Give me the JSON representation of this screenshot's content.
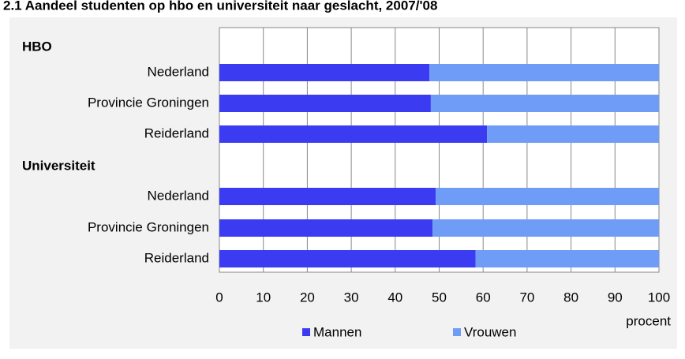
{
  "chart_data": {
    "type": "stacked_bar_horizontal",
    "title": "2.1 Aandeel studenten op hbo en universiteit naar geslacht, 2007/'08",
    "groups": [
      {
        "name": "HBO",
        "categories": [
          "Nederland",
          "Provincie Groningen",
          "Reiderland"
        ]
      },
      {
        "name": "Universiteit",
        "categories": [
          "Nederland",
          "Provincie Groningen",
          "Reiderland"
        ]
      }
    ],
    "series": [
      {
        "name": "Mannen",
        "color": "#3b3bf2",
        "values": [
          47.8,
          48.1,
          60.9,
          49.2,
          48.5,
          58.3
        ]
      },
      {
        "name": "Vrouwen",
        "color": "#6f9cf7",
        "values": [
          52.2,
          51.9,
          39.1,
          50.8,
          51.5,
          41.7
        ]
      }
    ],
    "xlim": [
      0,
      100
    ],
    "xticks": [
      0,
      10,
      20,
      30,
      40,
      50,
      60,
      70,
      80,
      90,
      100
    ],
    "xlabel": "procent",
    "grid": true,
    "legend": "bottom"
  }
}
